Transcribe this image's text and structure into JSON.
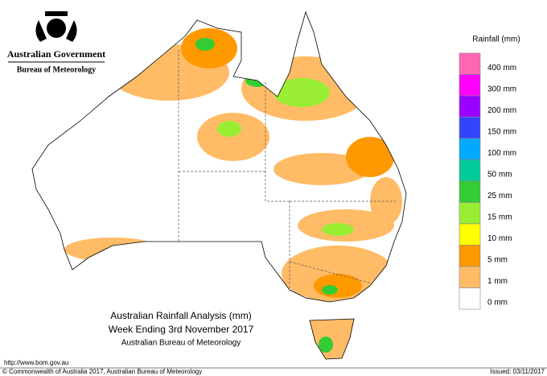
{
  "header": {
    "government": "Australian Government",
    "agency": "Bureau of Meteorology"
  },
  "legend": {
    "title": "Rainfall (mm)",
    "items": [
      {
        "label": "400 mm",
        "color": "#ff66b3"
      },
      {
        "label": "300 mm",
        "color": "#ff00ff"
      },
      {
        "label": "200 mm",
        "color": "#9900ff"
      },
      {
        "label": "150 mm",
        "color": "#3344ff"
      },
      {
        "label": "100 mm",
        "color": "#00aaff"
      },
      {
        "label": "50 mm",
        "color": "#00cc99"
      },
      {
        "label": "25 mm",
        "color": "#33cc33"
      },
      {
        "label": "15 mm",
        "color": "#99ee33"
      },
      {
        "label": "10 mm",
        "color": "#ffff00"
      },
      {
        "label": "5 mm",
        "color": "#ff9900"
      },
      {
        "label": "1 mm",
        "color": "#ffbb66"
      },
      {
        "label": "0 mm",
        "color": "#ffffff"
      }
    ]
  },
  "caption": {
    "line1": "Australian Rainfall Analysis (mm)",
    "line2": "Week Ending 3rd November 2017",
    "line3": "Australian Bureau of Meteorology"
  },
  "footer": {
    "url": "http://www.bom.gov.au",
    "copyright": "© Commonwealth of Australia 2017, Australian Bureau of Meteorology",
    "issued": "Issued: 03/11/2017"
  }
}
